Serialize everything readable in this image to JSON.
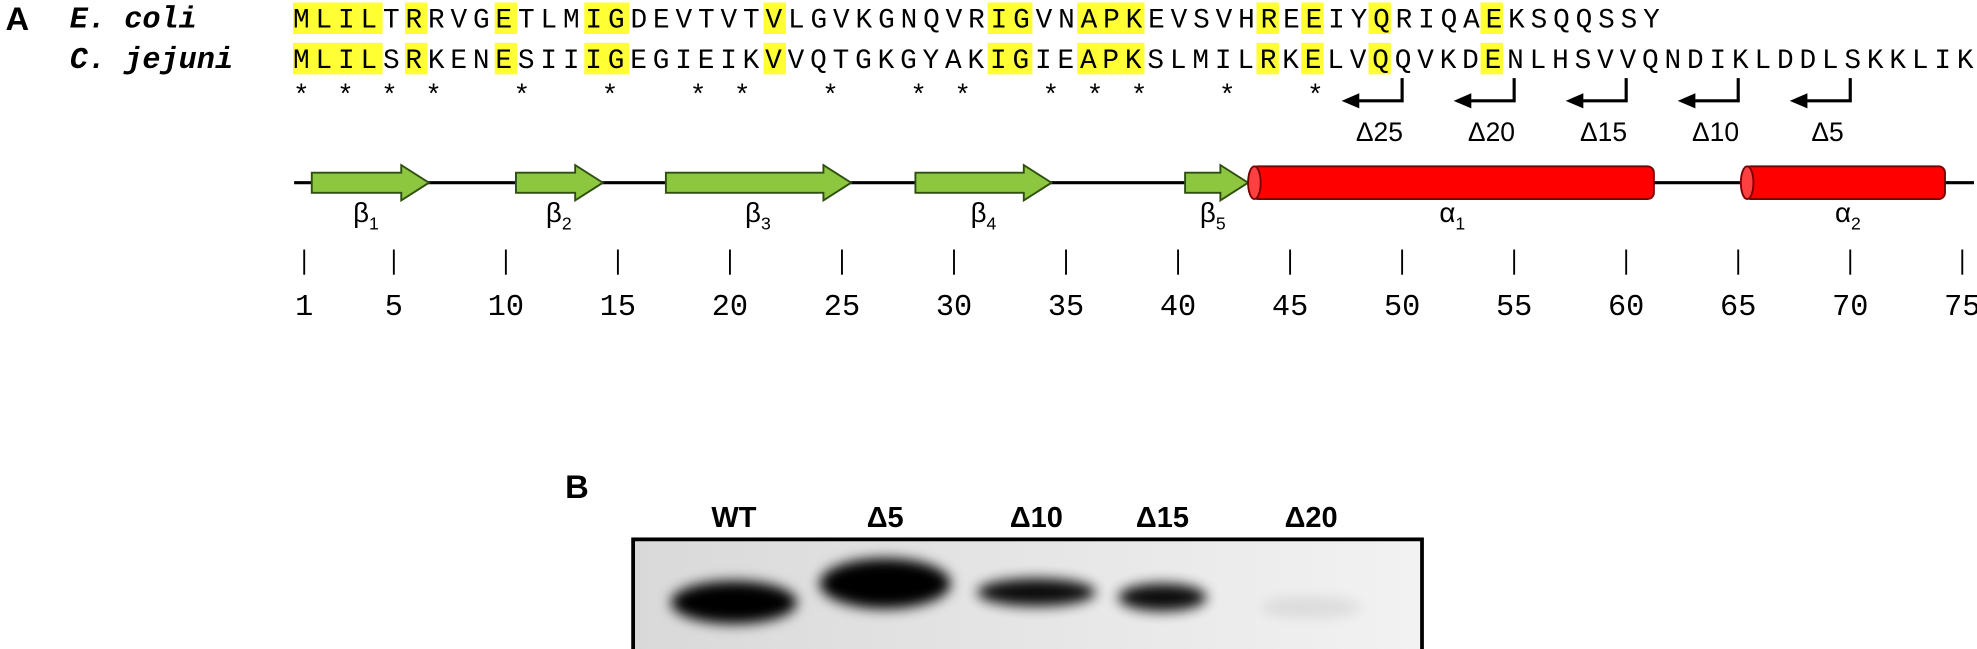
{
  "panels": {
    "a": {
      "label": "A",
      "alignment": [
        {
          "species": "E. coli",
          "sequence": "MLILTRRVGETLMIGDEVTVTVLGVKGNQVRIGVNAPKEVSVHREEIYQRIQAEKSQQSSY"
        },
        {
          "species": "C. jejuni",
          "sequence": "MLILSRKENESIIIGEGIEIKVVQTGKGYAKIGIEAPKSLMILRKELVQQVKDENLHSVVQNDIKLDDLSKKLIK"
        }
      ],
      "conservation": "**** *   *   **      *         **  ***     * *",
      "deletions": [
        "Δ25",
        "Δ20",
        "Δ15",
        "Δ10",
        "Δ5"
      ],
      "structure": [
        {
          "symbol": "β",
          "index": "1"
        },
        {
          "symbol": "β",
          "index": "2"
        },
        {
          "symbol": "β",
          "index": "3"
        },
        {
          "symbol": "β",
          "index": "4"
        },
        {
          "symbol": "β",
          "index": "5"
        },
        {
          "symbol": "α",
          "index": "1"
        },
        {
          "symbol": "α",
          "index": "2"
        }
      ],
      "ruler_ticks": [
        1,
        5,
        10,
        15,
        20,
        25,
        30,
        35,
        40,
        45,
        50,
        55,
        60,
        65,
        70,
        75
      ]
    },
    "b": {
      "label": "B",
      "lanes": [
        "WT",
        "Δ5",
        "Δ10",
        "Δ15",
        "Δ20"
      ]
    }
  }
}
